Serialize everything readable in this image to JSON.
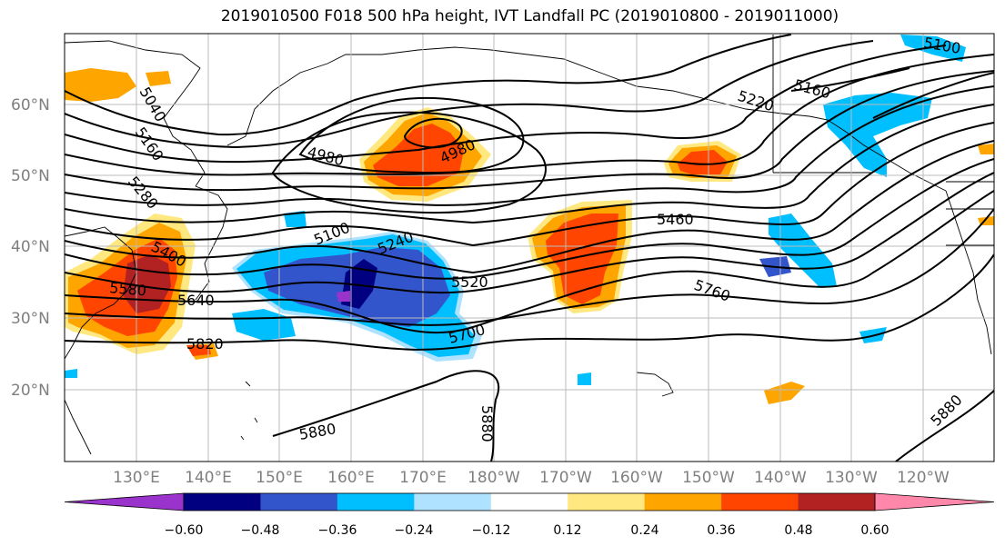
{
  "title": "2019010500 F018 500 hPa height, IVT Landfall PC (2019010800 - 2019011000)",
  "latitude_labels": [
    "60°N",
    "50°N",
    "40°N",
    "30°N",
    "20°N"
  ],
  "longitude_labels": [
    "130°E",
    "140°E",
    "150°E",
    "160°E",
    "170°E",
    "180°W",
    "170°W",
    "160°W",
    "150°W",
    "140°W",
    "130°W",
    "120°W"
  ],
  "contour_labels": [
    "5040",
    "5160",
    "5280",
    "5400",
    "5580",
    "5640",
    "5820",
    "4980",
    "4980",
    "5100",
    "5240",
    "5520",
    "5700",
    "5880",
    "5880",
    "5460",
    "5760",
    "5220",
    "5160",
    "5100",
    "5880"
  ],
  "colorbar": {
    "ticks": [
      "−0.60",
      "−0.48",
      "−0.36",
      "−0.24",
      "−0.12",
      "0.12",
      "0.24",
      "0.36",
      "0.48",
      "0.60"
    ],
    "colors": [
      "#9933cc",
      "#000080",
      "#3355cc",
      "#00bfff",
      "#aee2ff",
      "#ffffff",
      "#ffe880",
      "#ffa500",
      "#ff4500",
      "#b22222",
      "#ff88aa"
    ]
  },
  "fill_colors": {
    "orange_light": "#ffe880",
    "orange": "#ffa500",
    "red_orange": "#ff4500",
    "dark_red": "#b22222",
    "blue_light": "#aee2ff",
    "blue": "#00bfff",
    "blue_medium": "#3355cc",
    "navy": "#000080",
    "purple": "#9933cc"
  }
}
